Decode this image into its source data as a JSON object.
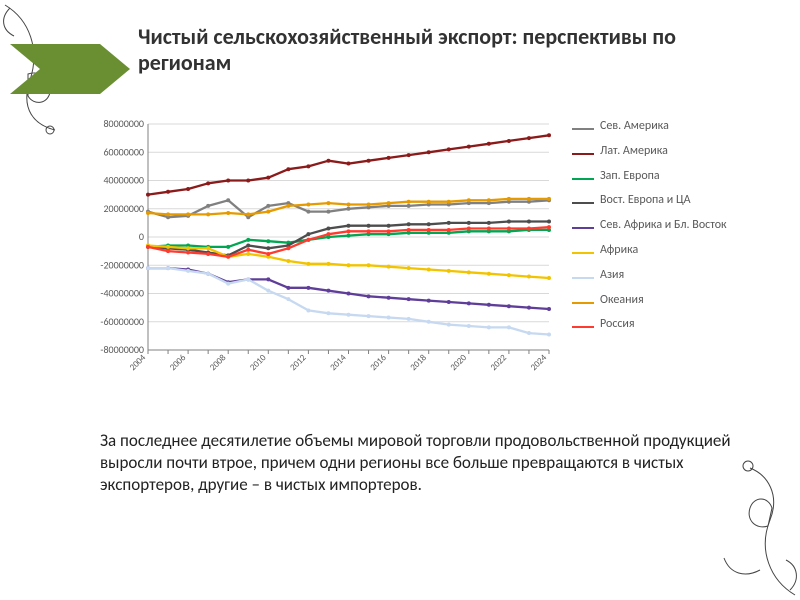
{
  "title": "Чистый сельскохозяйственный экспорт: перспективы по регионам",
  "title_fontsize": 22,
  "accent_color": "#6a8f33",
  "caption": "За последнее десятилетие объемы мировой торговли продовольственной продукцией выросли почти втрое, причем одни регионы все больше превращаются в чистых экспортеров, другие – в чистых импортеров.",
  "chart": {
    "type": "line",
    "background_color": "#ffffff",
    "grid_color": "#d9d9d9",
    "axis_color": "#808080",
    "plot_border_color": "#a0a0a0",
    "x_categories": [
      "2004",
      "2005",
      "2006",
      "2007",
      "2008",
      "2009",
      "2010",
      "2011",
      "2012",
      "2013",
      "2014",
      "2015",
      "2016",
      "2017",
      "2018",
      "2019",
      "2020",
      "2021",
      "2022",
      "2023",
      "2024"
    ],
    "x_label_rotation": -45,
    "ylim": [
      -80000000,
      80000000
    ],
    "ytick_step": 20000000,
    "ytick_labels": [
      "-80000000",
      "-60000000",
      "-40000000",
      "-20000000",
      "0",
      "20000000",
      "40000000",
      "60000000",
      "80000000"
    ],
    "tick_fontsize": 10,
    "line_width": 2.3,
    "marker_size": 2.0,
    "series": [
      {
        "name": "Сев. Америка",
        "color": "#808080",
        "values": [
          18000000,
          14000000,
          15000000,
          22000000,
          26000000,
          14000000,
          22000000,
          24000000,
          18000000,
          18000000,
          20000000,
          21000000,
          22000000,
          22000000,
          23000000,
          23000000,
          24000000,
          24000000,
          25000000,
          25000000,
          26000000
        ]
      },
      {
        "name": "Лат. Америка",
        "color": "#8b1a1a",
        "values": [
          30000000,
          32000000,
          34000000,
          38000000,
          40000000,
          40000000,
          42000000,
          48000000,
          50000000,
          54000000,
          52000000,
          54000000,
          56000000,
          58000000,
          60000000,
          62000000,
          64000000,
          66000000,
          68000000,
          70000000,
          72000000
        ]
      },
      {
        "name": "Зап. Европа",
        "color": "#00a651",
        "values": [
          -7000000,
          -6000000,
          -6000000,
          -7000000,
          -7000000,
          -2000000,
          -3000000,
          -4000000,
          -2000000,
          0,
          1000000,
          2000000,
          2000000,
          3000000,
          3000000,
          3000000,
          4000000,
          4000000,
          4000000,
          5000000,
          5000000
        ]
      },
      {
        "name": "Вост. Европа и ЦА",
        "color": "#4d4d4d",
        "values": [
          -7000000,
          -8000000,
          -9000000,
          -11000000,
          -13000000,
          -6000000,
          -8000000,
          -6000000,
          2000000,
          6000000,
          8000000,
          8000000,
          8000000,
          9000000,
          9000000,
          10000000,
          10000000,
          10000000,
          11000000,
          11000000,
          11000000
        ]
      },
      {
        "name": "Сев. Африка и Бл. Восток",
        "color": "#5f3e99",
        "values": [
          -22000000,
          -22000000,
          -23000000,
          -26000000,
          -32000000,
          -30000000,
          -30000000,
          -36000000,
          -36000000,
          -38000000,
          -40000000,
          -42000000,
          -43000000,
          -44000000,
          -45000000,
          -46000000,
          -47000000,
          -48000000,
          -49000000,
          -50000000,
          -51000000
        ]
      },
      {
        "name": "Африка",
        "color": "#f2c400",
        "values": [
          -6000000,
          -7000000,
          -8000000,
          -8000000,
          -14000000,
          -12000000,
          -14000000,
          -17000000,
          -19000000,
          -19000000,
          -20000000,
          -20000000,
          -21000000,
          -22000000,
          -23000000,
          -24000000,
          -25000000,
          -26000000,
          -27000000,
          -28000000,
          -29000000
        ]
      },
      {
        "name": "Азия",
        "color": "#c6d9f1",
        "values": [
          -22000000,
          -22000000,
          -24000000,
          -26000000,
          -33000000,
          -30000000,
          -38000000,
          -44000000,
          -52000000,
          -54000000,
          -55000000,
          -56000000,
          -57000000,
          -58000000,
          -60000000,
          -62000000,
          -63000000,
          -64000000,
          -64000000,
          -68000000,
          -69000000
        ]
      },
      {
        "name": "Океания",
        "color": "#e59b00",
        "values": [
          17000000,
          16000000,
          16000000,
          16000000,
          17000000,
          16000000,
          18000000,
          22000000,
          23000000,
          24000000,
          23000000,
          23000000,
          24000000,
          25000000,
          25000000,
          25000000,
          26000000,
          26000000,
          27000000,
          27000000,
          27000000
        ]
      },
      {
        "name": "Россия",
        "color": "#ff3b30",
        "values": [
          -7000000,
          -10000000,
          -11000000,
          -12000000,
          -14000000,
          -9000000,
          -12000000,
          -8000000,
          -2000000,
          2000000,
          4000000,
          4000000,
          4000000,
          5000000,
          5000000,
          5000000,
          6000000,
          6000000,
          6000000,
          6000000,
          7000000
        ]
      }
    ]
  },
  "legend_fontsize": 12,
  "deco_stroke": "#323232"
}
